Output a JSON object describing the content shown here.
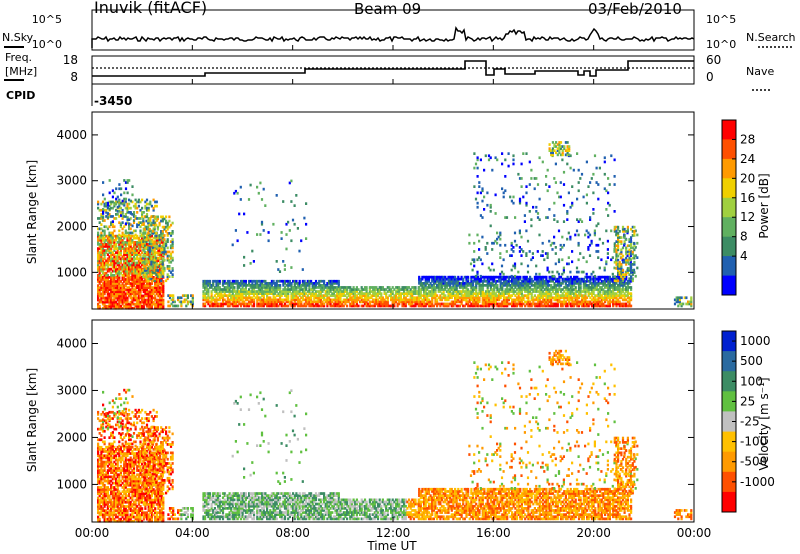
{
  "header": {
    "station": "Inuvik (fitACF)",
    "beam": "Beam 09",
    "date": "03/Feb/2010"
  },
  "top_panels": {
    "nsky_label": "N.Sky",
    "nsearch_label": "N.Search",
    "nsky_ticks": [
      "10^5",
      "10^0"
    ],
    "nsearch_ticks": [
      "10^5",
      "10^0"
    ],
    "freq_label_1": "Freq.",
    "freq_label_2": "[MHz]",
    "freq_ticks": [
      "18",
      "8"
    ],
    "nave_label": "Nave",
    "nave_ticks": [
      "60",
      "0"
    ],
    "cpid_label": "CPID",
    "cpid_value": "-3450"
  },
  "chart_data": [
    {
      "type": "heatmap",
      "name": "power",
      "ylabel": "Slant Range [km]",
      "xlabel": "",
      "yticks": [
        "1000",
        "2000",
        "3000",
        "4000"
      ],
      "ylim": [
        200,
        4500
      ],
      "xlim_hours": [
        0,
        24
      ],
      "colorbar": {
        "label": "Power [dB]",
        "ticks": [
          "28",
          "24",
          "20",
          "16",
          "12",
          "8",
          "4"
        ],
        "colors": [
          "#ff0000",
          "#ff5000",
          "#ff9a00",
          "#f0d000",
          "#a0d040",
          "#60b060",
          "#3c8c64",
          "#2060b0",
          "#0000ff"
        ]
      }
    },
    {
      "type": "heatmap",
      "name": "velocity",
      "ylabel": "Slant Range [km]",
      "xlabel": "Time UT",
      "xticks": [
        "00:00",
        "04:00",
        "08:00",
        "12:00",
        "16:00",
        "20:00",
        "00:00"
      ],
      "yticks": [
        "1000",
        "2000",
        "3000",
        "4000"
      ],
      "ylim": [
        200,
        4500
      ],
      "xlim_hours": [
        0,
        24
      ],
      "colorbar": {
        "label": "Velocity [m s⁻¹]",
        "ticks": [
          "1000",
          "500",
          "100",
          "25",
          "-25",
          "-100",
          "-500",
          "-1000"
        ],
        "colors": [
          "#0020d0",
          "#2a6aa0",
          "#3c8c64",
          "#60c040",
          "#c0c0c0",
          "#ffc000",
          "#ff9a00",
          "#ff5000",
          "#ff0000"
        ]
      }
    }
  ]
}
